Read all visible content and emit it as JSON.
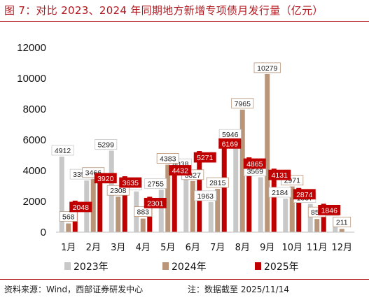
{
  "title": "图 7：对比 2023、2024 年同期地方新增专项债月发行量（亿元）",
  "source": "资料来源：Wind，西部证券研发中心",
  "note": "注：数据截至 2025/11/14",
  "colors": {
    "s2023": "#c8c8c8",
    "s2024": "#b9967a",
    "s2025": "#c00000",
    "title": "#b2171e"
  },
  "chart_data": {
    "type": "bar",
    "title": "图 7：对比 2023、2024 年同期地方新增专项债月发行量（亿元）",
    "xlabel": "",
    "ylabel": "",
    "ylim": [
      0,
      12000
    ],
    "yticks": [
      0,
      2000,
      4000,
      6000,
      8000,
      10000,
      12000
    ],
    "grid": false,
    "legend": "bottom",
    "categories": [
      "1月",
      "2月",
      "3月",
      "4月",
      "5月",
      "6月",
      "7月",
      "8月",
      "9月",
      "10月",
      "11月",
      "12月"
    ],
    "series": [
      {
        "name": "2023年",
        "values": [
          4912,
          3358,
          5299,
          2648,
          2755,
          4038,
          1963,
          5946,
          3569,
          2184,
          1837,
          921
        ]
      },
      {
        "name": "2024年",
        "values": [
          568,
          3466,
          2308,
          883,
          4383,
          3327,
          2815,
          7965,
          10279,
          2971,
          856,
          211
        ]
      },
      {
        "name": "2025年",
        "values": [
          2048,
          3920,
          3635,
          2301,
          4432,
          5271,
          6169,
          4865,
          4131,
          2874,
          1846,
          null
        ]
      }
    ]
  }
}
